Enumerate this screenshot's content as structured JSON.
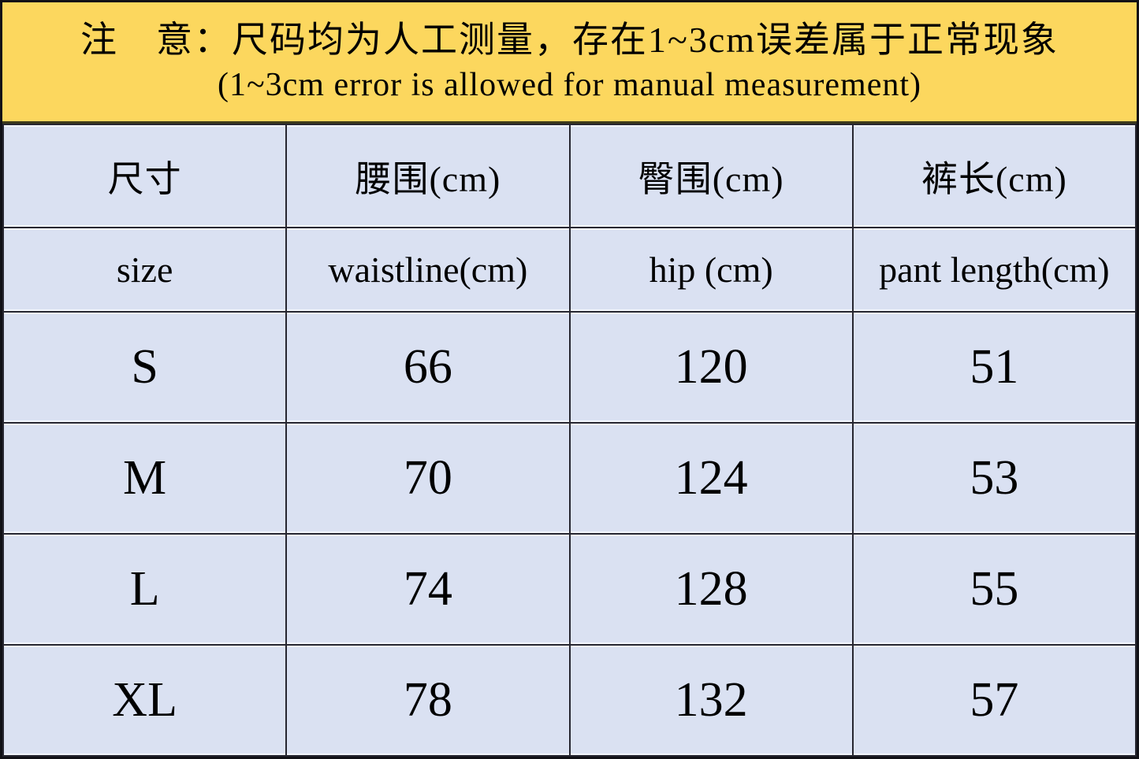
{
  "colors": {
    "banner_background": "#FCD75E",
    "cell_background": "#DAE1F2",
    "border": "#262630",
    "text": "#000000"
  },
  "notice": {
    "line1": "注　意：尺码均为人工测量，存在1~3cm误差属于正常现象",
    "line2": "(1~3cm error is allowed for manual measurement)"
  },
  "table": {
    "header_cn": [
      "尺寸",
      "腰围(cm)",
      "臀围(cm)",
      "裤长(cm)"
    ],
    "header_en": [
      "size",
      "waistline(cm)",
      "hip (cm)",
      "pant length(cm)"
    ],
    "rows": [
      [
        "S",
        "66",
        "120",
        "51"
      ],
      [
        "M",
        "70",
        "124",
        "53"
      ],
      [
        "L",
        "74",
        "128",
        "55"
      ],
      [
        "XL",
        "78",
        "132",
        "57"
      ]
    ]
  },
  "chart_data": {
    "type": "table",
    "title": "注　意：尺码均为人工测量，存在1~3cm误差属于正常现象",
    "subtitle": "(1~3cm error is allowed for manual measurement)",
    "columns_cn": [
      "尺寸",
      "腰围(cm)",
      "臀围(cm)",
      "裤长(cm)"
    ],
    "columns_en": [
      "size",
      "waistline(cm)",
      "hip (cm)",
      "pant length(cm)"
    ],
    "rows": [
      {
        "size": "S",
        "waistline_cm": 66,
        "hip_cm": 120,
        "pant_length_cm": 51
      },
      {
        "size": "M",
        "waistline_cm": 70,
        "hip_cm": 124,
        "pant_length_cm": 53
      },
      {
        "size": "L",
        "waistline_cm": 74,
        "hip_cm": 128,
        "pant_length_cm": 55
      },
      {
        "size": "XL",
        "waistline_cm": 78,
        "hip_cm": 132,
        "pant_length_cm": 57
      }
    ]
  }
}
